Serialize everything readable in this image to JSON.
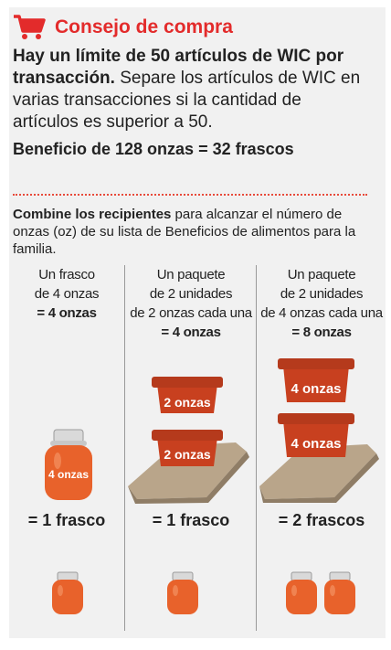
{
  "header": {
    "title": "Consejo de compra",
    "icon": "shopping-cart-icon",
    "accent": "#e32b2b"
  },
  "intro": {
    "bold": "Hay un límite de 50 artículos de WIC por transacción.",
    "rest": " Separe los artículos de WIC en varias transacciones si la cantidad de artículos es superior a 50."
  },
  "benefit": "Beneficio de 128 onzas = 32 frascos",
  "combine": {
    "bold": "Combine los recipientes",
    "rest": " para alcanzar el número de onzas (oz) de su lista de Beneficios de alimentos para la familia."
  },
  "columns": [
    {
      "line1": "Un frasco",
      "line2": "de 4 onzas",
      "total": "= 4 onzas",
      "item_label": "4 onzas",
      "result": "= 1 frasco",
      "jars": 1
    },
    {
      "line1": "Un paquete",
      "line2": "de 2 unidades",
      "line3": "de 2 onzas cada una",
      "total": "= 4 onzas",
      "item_label": "2 onzas",
      "result": "= 1 frasco",
      "jars": 1
    },
    {
      "line1": "Un paquete",
      "line2": "de 2 unidades",
      "line3": "de 4 onzas cada una",
      "total": "= 8 onzas",
      "item_label": "4 onzas",
      "result": "= 2 frascos",
      "jars": 2
    }
  ],
  "colors": {
    "dots": "#e84a3a",
    "container": "#c8401f",
    "lid": "#c84526",
    "cardboard": "#b9a58a"
  }
}
